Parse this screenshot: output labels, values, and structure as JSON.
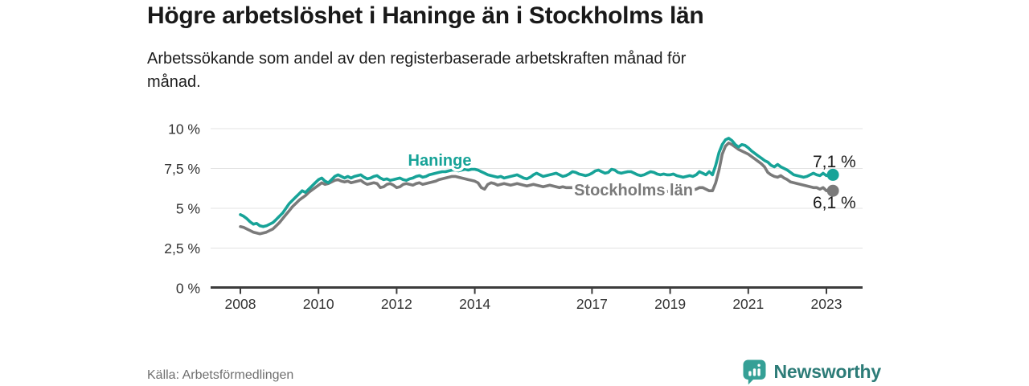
{
  "header": {
    "title": "Högre arbetslöshet i Haninge än i Stockholms län",
    "subtitle_line1": "Arbetssökande som andel av den registerbaserade arbetskraften månad för",
    "subtitle_line2": "månad."
  },
  "footer": {
    "source": "Källa: Arbetsförmedlingen",
    "brand": "Newsworthy"
  },
  "colors": {
    "haninge": "#17a398",
    "stockholm": "#7a7a7a",
    "grid": "#e3e3e3",
    "axis": "#3c3c3c",
    "end_label_text": "#191919",
    "brand_icon": "#35a096",
    "brand_text": "#2d7c78",
    "source_text": "#6f6f6f"
  },
  "chart_data": {
    "type": "line",
    "title": "Högre arbetslöshet i Haninge än i Stockholms län",
    "subtitle": "Arbetssökande som andel av den registerbaserade arbetskraften månad för månad.",
    "x_unit": "month",
    "x_start": "2008-01",
    "x_end": "2023-03",
    "ylim": [
      0,
      10
    ],
    "grid": "horizontal",
    "legend_position": "inline-labels",
    "y_tick_values": [
      10,
      7.5,
      5,
      2.5,
      0
    ],
    "y_tick_labels": [
      "10 %",
      "7,5 %",
      "5 %",
      "2,5 %",
      "0 %"
    ],
    "x_tick_labels": [
      "2008",
      "2010",
      "2012",
      "2014",
      "2017",
      "2019",
      "2021",
      "2023"
    ],
    "x_tick_month_index": [
      0,
      24,
      48,
      72,
      108,
      132,
      156,
      180
    ],
    "series": [
      {
        "name": "Haninge",
        "color": "#17a398",
        "end_label": "7,1 %",
        "end_value": 7.1,
        "values": [
          4.6,
          4.5,
          4.35,
          4.15,
          4.0,
          4.05,
          3.9,
          3.85,
          3.9,
          4.0,
          4.1,
          4.3,
          4.5,
          4.7,
          5.0,
          5.3,
          5.5,
          5.7,
          5.9,
          6.1,
          6.0,
          6.2,
          6.4,
          6.6,
          6.8,
          6.9,
          6.7,
          6.6,
          6.8,
          7.0,
          7.1,
          7.0,
          6.9,
          7.0,
          6.9,
          7.0,
          7.05,
          7.1,
          6.95,
          6.85,
          6.9,
          7.0,
          7.05,
          6.9,
          6.8,
          6.85,
          6.75,
          6.8,
          6.85,
          6.9,
          6.8,
          6.75,
          6.85,
          6.9,
          7.0,
          7.05,
          6.95,
          7.0,
          7.1,
          7.15,
          7.2,
          7.25,
          7.3,
          7.3,
          7.35,
          7.4,
          7.4,
          7.35,
          7.4,
          7.45,
          7.4,
          7.45,
          7.45,
          7.4,
          7.3,
          7.2,
          7.1,
          7.05,
          7.0,
          6.95,
          7.0,
          6.9,
          6.95,
          7.0,
          7.05,
          7.1,
          7.0,
          6.9,
          6.85,
          6.95,
          7.1,
          7.2,
          7.1,
          7.0,
          7.05,
          7.1,
          7.15,
          7.2,
          7.1,
          7.0,
          7.05,
          7.15,
          7.3,
          7.25,
          7.15,
          7.1,
          7.05,
          7.1,
          7.2,
          7.35,
          7.4,
          7.3,
          7.2,
          7.25,
          7.45,
          7.4,
          7.25,
          7.2,
          7.25,
          7.3,
          7.3,
          7.2,
          7.1,
          7.05,
          7.1,
          7.2,
          7.3,
          7.25,
          7.15,
          7.1,
          7.15,
          7.1,
          7.1,
          7.15,
          7.05,
          7.0,
          6.95,
          7.0,
          7.05,
          7.0,
          7.1,
          7.3,
          7.2,
          7.1,
          7.3,
          7.1,
          7.7,
          8.5,
          9.0,
          9.3,
          9.4,
          9.25,
          9.0,
          8.85,
          9.0,
          8.95,
          8.8,
          8.6,
          8.45,
          8.3,
          8.15,
          8.0,
          7.9,
          7.7,
          7.6,
          7.75,
          7.6,
          7.5,
          7.4,
          7.25,
          7.1,
          7.05,
          7.0,
          6.95,
          7.0,
          7.1,
          7.2,
          7.1,
          7.05,
          7.2,
          7.05,
          7.15,
          7.1
        ]
      },
      {
        "name": "Stockholms län",
        "color": "#7a7a7a",
        "end_label": "6,1 %",
        "end_value": 6.1,
        "values": [
          3.85,
          3.8,
          3.7,
          3.6,
          3.5,
          3.45,
          3.4,
          3.45,
          3.5,
          3.6,
          3.7,
          3.9,
          4.1,
          4.35,
          4.6,
          4.85,
          5.1,
          5.3,
          5.5,
          5.65,
          5.8,
          6.0,
          6.15,
          6.3,
          6.45,
          6.6,
          6.5,
          6.55,
          6.65,
          6.75,
          6.8,
          6.7,
          6.65,
          6.7,
          6.6,
          6.65,
          6.7,
          6.75,
          6.6,
          6.5,
          6.55,
          6.6,
          6.55,
          6.3,
          6.35,
          6.5,
          6.55,
          6.45,
          6.3,
          6.35,
          6.5,
          6.55,
          6.5,
          6.45,
          6.55,
          6.6,
          6.5,
          6.55,
          6.6,
          6.65,
          6.7,
          6.8,
          6.85,
          6.9,
          6.95,
          7.0,
          7.0,
          6.95,
          6.9,
          6.85,
          6.8,
          6.75,
          6.7,
          6.6,
          6.3,
          6.2,
          6.5,
          6.6,
          6.55,
          6.45,
          6.5,
          6.55,
          6.5,
          6.45,
          6.5,
          6.55,
          6.5,
          6.45,
          6.4,
          6.45,
          6.5,
          6.45,
          6.4,
          6.35,
          6.4,
          6.45,
          6.4,
          6.35,
          6.3,
          6.35,
          6.3,
          6.3,
          6.3,
          6.28,
          6.25,
          6.25,
          6.22,
          6.2,
          6.2,
          6.22,
          6.18,
          6.15,
          6.15,
          6.18,
          6.2,
          6.15,
          6.1,
          6.1,
          6.08,
          6.1,
          6.1,
          6.12,
          6.08,
          6.05,
          6.05,
          6.08,
          6.1,
          6.05,
          6.0,
          6.0,
          6.02,
          6.05,
          6.05,
          6.1,
          6.05,
          6.0,
          6.0,
          6.05,
          6.1,
          6.15,
          6.2,
          6.3,
          6.3,
          6.2,
          6.1,
          6.1,
          6.6,
          7.4,
          8.4,
          8.9,
          9.1,
          9.0,
          8.85,
          8.7,
          8.6,
          8.5,
          8.4,
          8.25,
          8.1,
          7.95,
          7.8,
          7.6,
          7.25,
          7.1,
          7.0,
          6.95,
          7.05,
          6.9,
          6.8,
          6.65,
          6.6,
          6.55,
          6.5,
          6.45,
          6.4,
          6.35,
          6.3,
          6.3,
          6.2,
          6.3,
          6.1,
          6.15,
          6.1
        ]
      }
    ]
  }
}
